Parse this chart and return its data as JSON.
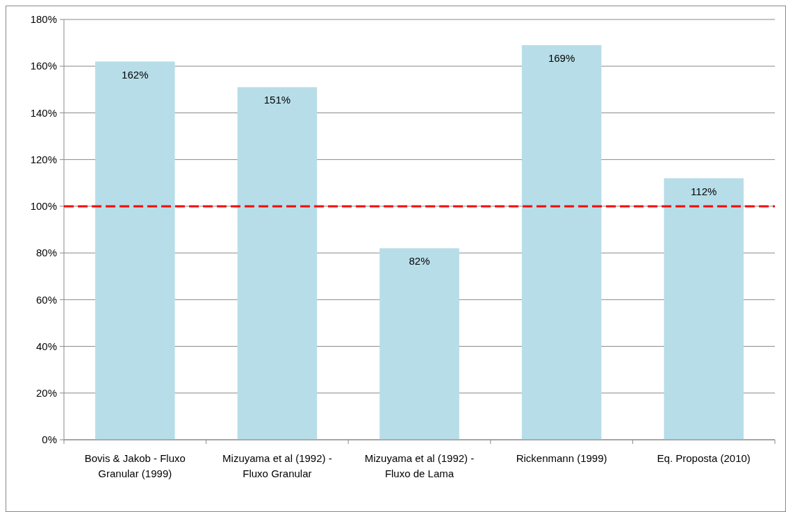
{
  "chart_data": {
    "type": "bar",
    "categories": [
      "Bovis & Jakob - Fluxo\nGranular (1999)",
      "Mizuyama et al (1992) -\nFluxo Granular",
      "Mizuyama et al (1992) -\nFluxo de Lama",
      "Rickenmann (1999)",
      "Eq. Proposta (2010)"
    ],
    "values": [
      162,
      151,
      82,
      169,
      112
    ],
    "value_labels": [
      "162%",
      "151%",
      "82%",
      "169%",
      "112%"
    ],
    "color": "#b7dde8",
    "ylim": [
      0,
      180
    ],
    "yticks": [
      {
        "value": 0,
        "label": "0%"
      },
      {
        "value": 20,
        "label": "20%"
      },
      {
        "value": 40,
        "label": "40%"
      },
      {
        "value": 60,
        "label": "60%"
      },
      {
        "value": 80,
        "label": "80%"
      },
      {
        "value": 100,
        "label": "100%"
      },
      {
        "value": 120,
        "label": "120%"
      },
      {
        "value": 140,
        "label": "140%"
      },
      {
        "value": 160,
        "label": "160%"
      },
      {
        "value": 180,
        "label": "180%"
      }
    ],
    "grid": "y",
    "ref_lines": [
      {
        "axis": "y",
        "value": 100,
        "color": "#ff0000",
        "line_style": "dashed"
      }
    ]
  }
}
